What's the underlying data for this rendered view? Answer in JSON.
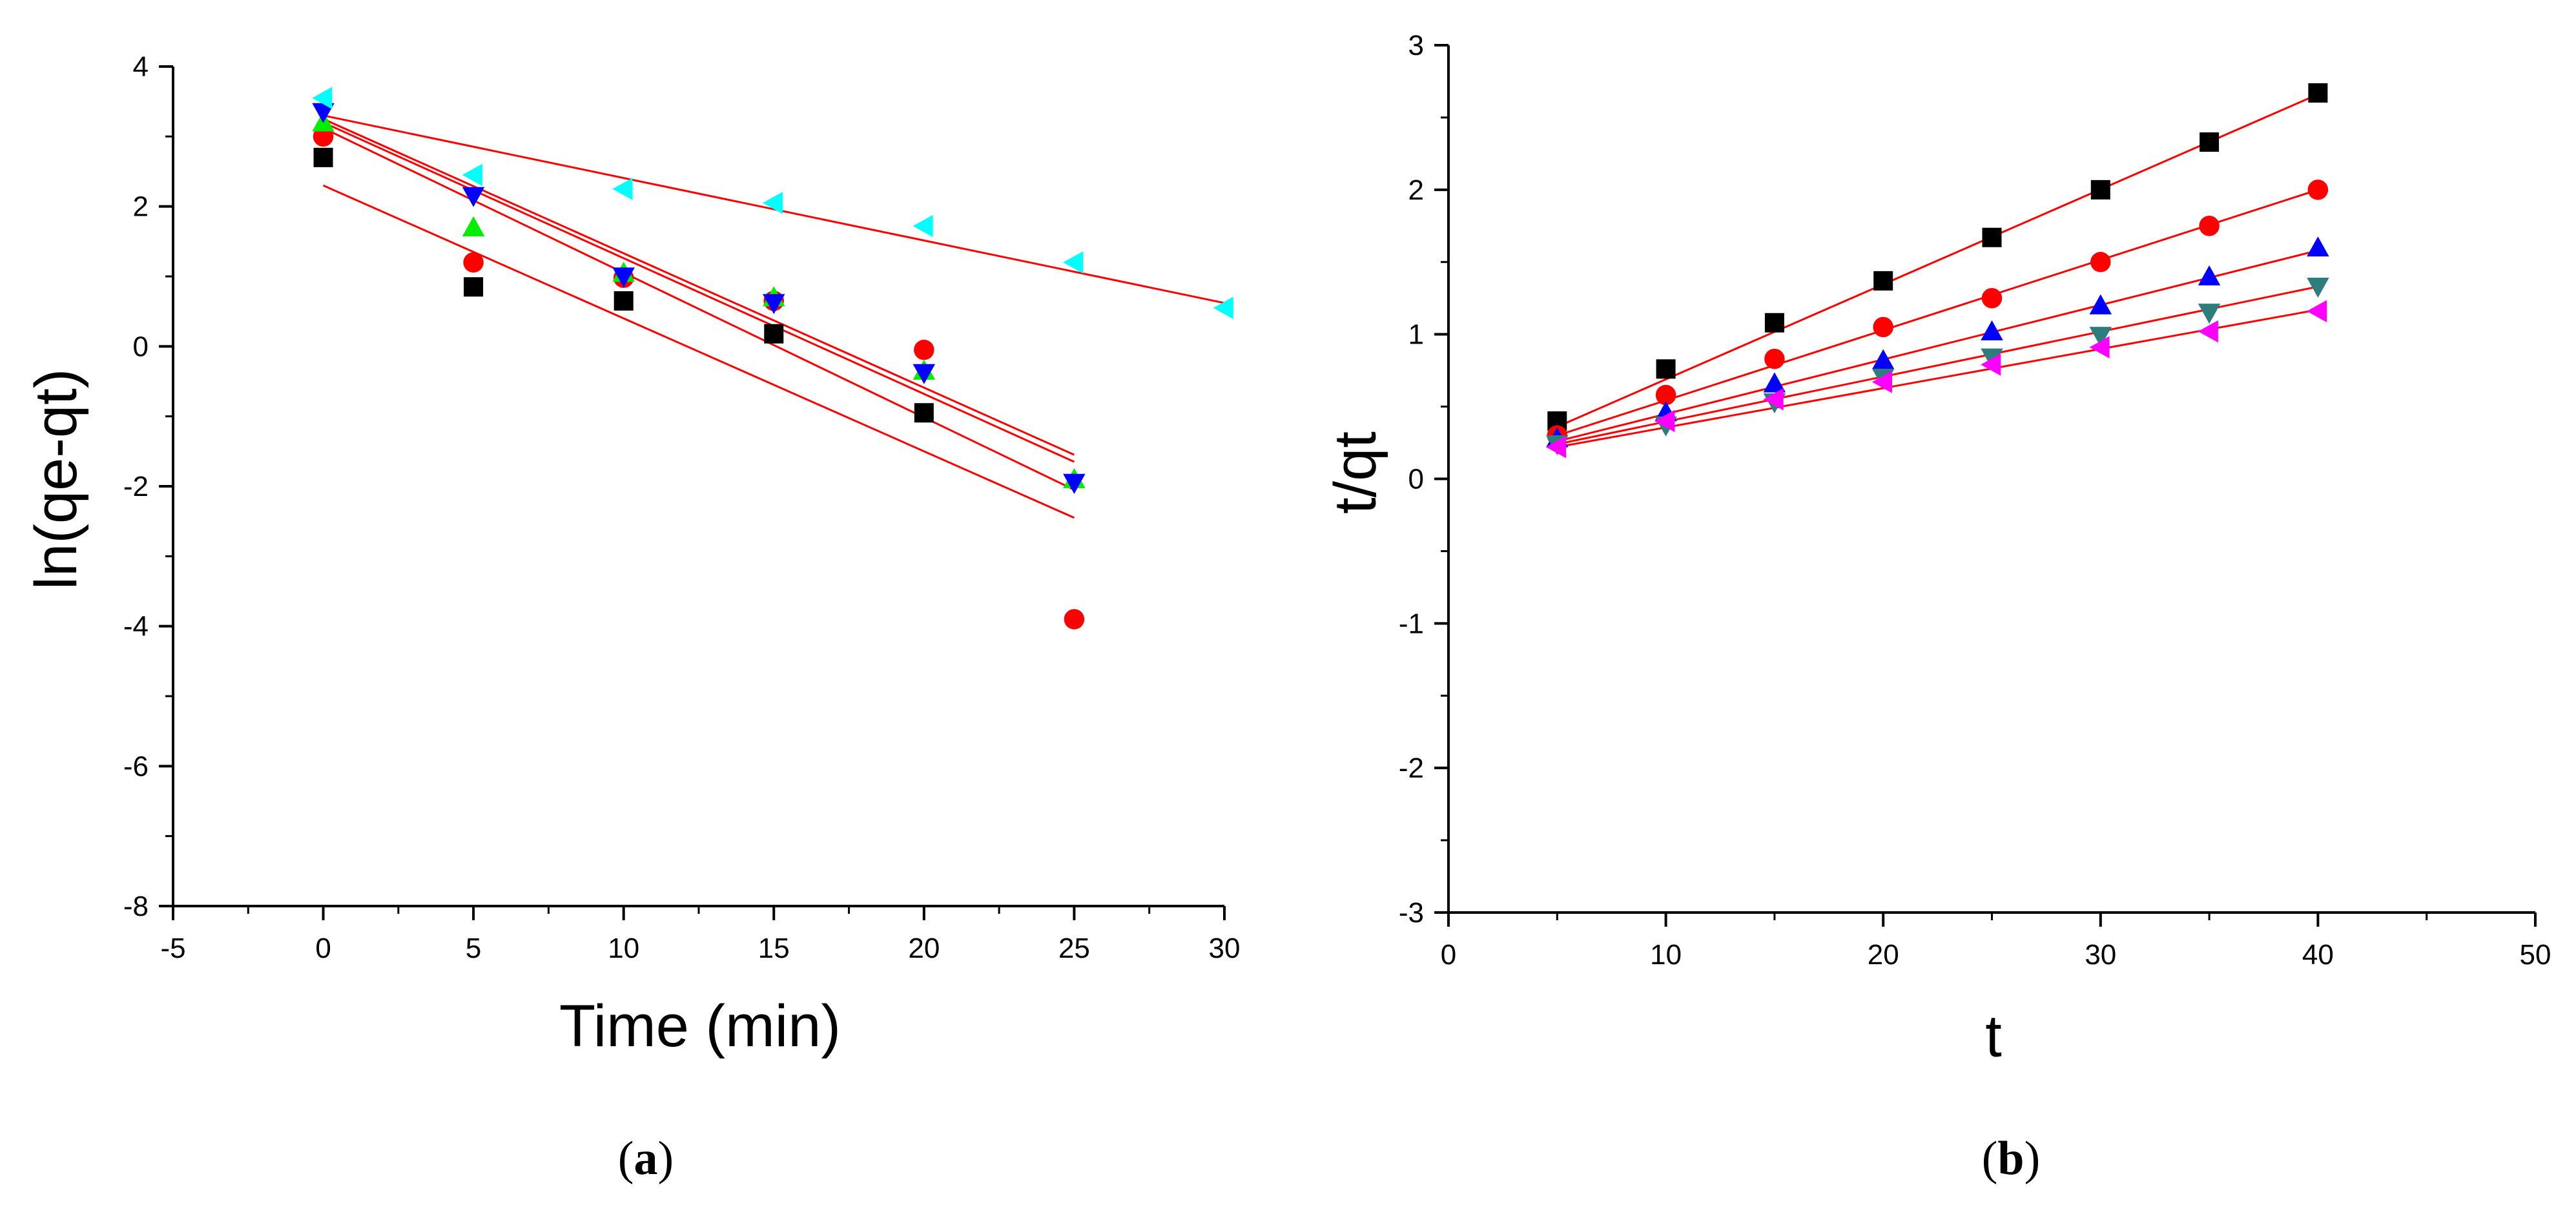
{
  "chart_data": [
    {
      "type": "scatter",
      "panel": "a",
      "caption_label": "a",
      "title": "",
      "xlabel": "Time (min)",
      "ylabel": "ln(qe-qt)",
      "xlim": [
        -5,
        30
      ],
      "ylim": [
        -8,
        4
      ],
      "xticks": [
        -5,
        0,
        5,
        10,
        15,
        20,
        25,
        30
      ],
      "yticks": [
        -8,
        -6,
        -4,
        -2,
        0,
        2,
        4
      ],
      "grid": false,
      "series": [
        {
          "name": "series-1",
          "marker": "square",
          "color": "#000000",
          "x": [
            0,
            5,
            10,
            15,
            20
          ],
          "y": [
            2.7,
            0.85,
            0.65,
            0.18,
            -0.95
          ],
          "fit": [
            [
              0,
              2.3
            ],
            [
              25,
              -2.45
            ]
          ]
        },
        {
          "name": "series-2",
          "marker": "circle",
          "color": "#ff0000",
          "x": [
            0,
            5,
            10,
            15,
            20,
            25
          ],
          "y": [
            3.0,
            1.2,
            0.98,
            0.65,
            -0.05,
            -3.9
          ],
          "fit": [
            [
              0,
              3.12
            ],
            [
              25,
              -2.05
            ]
          ]
        },
        {
          "name": "series-3",
          "marker": "triangle-up",
          "color": "#00ee00",
          "x": [
            0,
            5,
            10,
            15,
            20,
            25
          ],
          "y": [
            3.2,
            1.7,
            1.05,
            0.7,
            -0.35,
            -1.9
          ],
          "fit": [
            [
              0,
              3.25
            ],
            [
              25,
              -1.55
            ]
          ]
        },
        {
          "name": "series-4",
          "marker": "triangle-down",
          "color": "#0000ff",
          "x": [
            0,
            5,
            10,
            15,
            20,
            25
          ],
          "y": [
            3.35,
            2.15,
            1.0,
            0.62,
            -0.38,
            -1.95
          ],
          "fit": [
            [
              0,
              3.2
            ],
            [
              25,
              -1.65
            ]
          ]
        },
        {
          "name": "series-5",
          "marker": "triangle-left",
          "color": "#00ffff",
          "x": [
            0,
            5,
            10,
            15,
            20,
            25,
            30
          ],
          "y": [
            3.55,
            2.45,
            2.25,
            2.05,
            1.72,
            1.2,
            0.55
          ],
          "fit": [
            [
              0,
              3.3
            ],
            [
              30,
              0.62
            ]
          ]
        }
      ]
    },
    {
      "type": "scatter",
      "panel": "b",
      "caption_label": "b",
      "title": "",
      "xlabel": "t",
      "ylabel": "t/qt",
      "xlim": [
        0,
        50
      ],
      "ylim": [
        -3,
        3
      ],
      "xticks": [
        0,
        10,
        20,
        30,
        40,
        50
      ],
      "yticks": [
        -3,
        -2,
        -1,
        0,
        1,
        2,
        3
      ],
      "grid": false,
      "series": [
        {
          "name": "series-1",
          "marker": "square",
          "color": "#000000",
          "x": [
            5,
            10,
            15,
            20,
            25,
            30,
            35,
            40
          ],
          "y": [
            0.4,
            0.76,
            1.08,
            1.37,
            1.67,
            2.0,
            2.33,
            2.67
          ],
          "fit": [
            [
              5,
              0.36
            ],
            [
              40,
              2.66
            ]
          ]
        },
        {
          "name": "series-2",
          "marker": "circle",
          "color": "#ff0000",
          "x": [
            5,
            10,
            15,
            20,
            25,
            30,
            35,
            40
          ],
          "y": [
            0.3,
            0.58,
            0.83,
            1.05,
            1.25,
            1.5,
            1.75,
            2.0
          ],
          "fit": [
            [
              5,
              0.3
            ],
            [
              40,
              2.0
            ]
          ]
        },
        {
          "name": "series-3",
          "marker": "triangle-up",
          "color": "#0000ff",
          "x": [
            5,
            10,
            15,
            20,
            25,
            30,
            35,
            40
          ],
          "y": [
            0.28,
            0.46,
            0.66,
            0.82,
            1.02,
            1.2,
            1.4,
            1.6
          ],
          "fit": [
            [
              5,
              0.26
            ],
            [
              40,
              1.58
            ]
          ]
        },
        {
          "name": "series-4",
          "marker": "triangle-down",
          "color": "#2e7d7d",
          "x": [
            5,
            10,
            15,
            20,
            25,
            30,
            35,
            40
          ],
          "y": [
            0.24,
            0.37,
            0.53,
            0.7,
            0.84,
            0.99,
            1.15,
            1.33
          ],
          "fit": [
            [
              5,
              0.24
            ],
            [
              40,
              1.33
            ]
          ]
        },
        {
          "name": "series-5",
          "marker": "triangle-left",
          "color": "#ff00ff",
          "x": [
            5,
            10,
            15,
            20,
            25,
            30,
            35,
            40
          ],
          "y": [
            0.22,
            0.4,
            0.55,
            0.67,
            0.79,
            0.91,
            1.02,
            1.16
          ],
          "fit": [
            [
              5,
              0.22
            ],
            [
              40,
              1.17
            ]
          ]
        }
      ]
    }
  ]
}
